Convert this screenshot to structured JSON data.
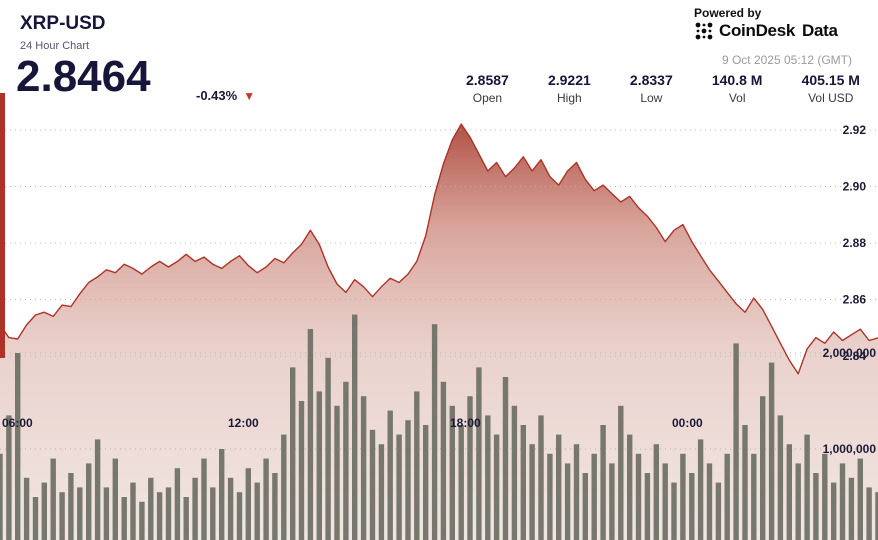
{
  "header": {
    "symbol": "XRP-USD",
    "subtitle": "24 Hour Chart",
    "price": "2.8464",
    "change": "-0.43%",
    "down_arrow": "▼",
    "powered_by": "Powered by",
    "brand_coindesk": "CoinDesk",
    "brand_data": "Data",
    "timestamp": "9 Oct 2025 05:12 (GMT)"
  },
  "stats": [
    {
      "value": "2.8587",
      "label": "Open"
    },
    {
      "value": "2.9221",
      "label": "High"
    },
    {
      "value": "2.8337",
      "label": "Low"
    },
    {
      "value": "140.8 M",
      "label": "Vol"
    },
    {
      "value": "405.15 M",
      "label": "Vol USD"
    }
  ],
  "colors": {
    "line": "#ad3327",
    "volume_bar": "#6b6f64",
    "grid": "#b0b0b0",
    "accent_red": "#c2392b",
    "text_dark": "#16163a"
  },
  "chart_data": {
    "type": "area",
    "title": "XRP-USD 24 Hour Chart",
    "x_ticks": [
      "06:00",
      "12:00",
      "18:00",
      "00:00"
    ],
    "price_tick_labels": [
      "2.92",
      "2.90",
      "2.88",
      "2.86",
      "2.84"
    ],
    "price_tick_values": [
      2.92,
      2.9,
      2.88,
      2.86,
      2.84
    ],
    "volume_tick_labels": [
      "2,000,000",
      "1,000,000"
    ],
    "volume_tick_values": [
      2,
      1
    ],
    "price_axis_range": [
      2.8337,
      2.9221
    ],
    "volume_axis_range_millions": [
      0,
      2.5
    ],
    "open": 2.8587,
    "high": 2.9221,
    "low": 2.8337,
    "close": 2.8464,
    "volume_total": "140.8 M",
    "volume_usd_total": "405.15 M",
    "line_color": "#ad3327",
    "volume_color": "#6b6f64",
    "area_gradient": [
      {
        "offset": "0%",
        "color": "#a6392c",
        "opacity": 0.88
      },
      {
        "offset": "25%",
        "color": "#b85a49",
        "opacity": 0.55
      },
      {
        "offset": "55%",
        "color": "#c8887a",
        "opacity": 0.38
      },
      {
        "offset": "100%",
        "color": "#cfa99c",
        "opacity": 0.3
      }
    ],
    "price_series": [
      2.851,
      2.8465,
      2.846,
      2.851,
      2.8545,
      2.8555,
      2.854,
      2.858,
      2.8575,
      2.862,
      2.866,
      2.868,
      2.8705,
      2.8695,
      2.8725,
      2.871,
      2.869,
      2.8715,
      2.8735,
      2.8715,
      2.8735,
      2.876,
      2.8735,
      2.875,
      2.8725,
      2.871,
      2.8735,
      2.8755,
      2.872,
      2.8695,
      2.8715,
      2.8745,
      2.873,
      2.8765,
      2.8795,
      2.8845,
      2.8795,
      2.8715,
      2.8655,
      2.8625,
      2.867,
      2.8645,
      2.861,
      2.8645,
      2.8675,
      2.866,
      2.869,
      2.8735,
      2.8825,
      2.897,
      2.908,
      2.9165,
      2.9221,
      2.9175,
      2.9115,
      2.9055,
      2.9085,
      2.9035,
      2.9065,
      2.9105,
      2.9055,
      2.9095,
      2.9035,
      2.9005,
      2.9055,
      2.9085,
      2.9025,
      2.8985,
      2.9005,
      2.8975,
      2.8945,
      2.8965,
      2.8925,
      2.8895,
      2.8855,
      2.8805,
      2.8845,
      2.8865,
      2.8805,
      2.8755,
      2.8705,
      2.8665,
      2.8625,
      2.8585,
      2.8555,
      2.8605,
      2.8565,
      2.8505,
      2.8445,
      2.8385,
      2.8337,
      2.8425,
      2.8465,
      2.8445,
      2.8485,
      2.8455,
      2.8475,
      2.8495,
      2.8455,
      2.8464
    ],
    "volume_series_millions": [
      0.95,
      1.35,
      2.0,
      0.7,
      0.5,
      0.65,
      0.9,
      0.55,
      0.75,
      0.6,
      0.85,
      1.1,
      0.6,
      0.9,
      0.5,
      0.65,
      0.45,
      0.7,
      0.55,
      0.6,
      0.8,
      0.5,
      0.7,
      0.9,
      0.6,
      1.0,
      0.7,
      0.55,
      0.8,
      0.65,
      0.9,
      0.75,
      1.15,
      1.85,
      1.5,
      2.25,
      1.6,
      1.95,
      1.45,
      1.7,
      2.4,
      1.55,
      1.2,
      1.05,
      1.4,
      1.15,
      1.3,
      1.6,
      1.25,
      2.3,
      1.7,
      1.45,
      1.25,
      1.55,
      1.85,
      1.35,
      1.15,
      1.75,
      1.45,
      1.25,
      1.05,
      1.35,
      0.95,
      1.15,
      0.85,
      1.05,
      0.75,
      0.95,
      1.25,
      0.85,
      1.45,
      1.15,
      0.95,
      0.75,
      1.05,
      0.85,
      0.65,
      0.95,
      0.75,
      1.1,
      0.85,
      0.65,
      0.95,
      2.1,
      1.25,
      0.95,
      1.55,
      1.9,
      1.35,
      1.05,
      0.85,
      1.15,
      0.75,
      0.95,
      0.65,
      0.85,
      0.7,
      0.9,
      0.6,
      0.55
    ]
  }
}
